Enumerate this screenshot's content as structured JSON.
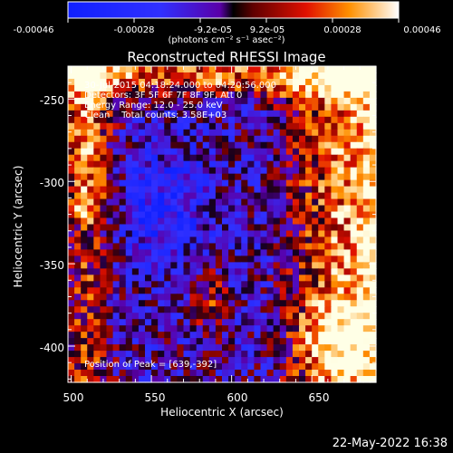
{
  "colorbar": {
    "ticks": [
      "-0.00046",
      "-0.00028",
      "-9.2e-05",
      "9.2e-05",
      "0.00028",
      "0.00046"
    ],
    "units": "(photons cm⁻² s⁻¹ asec⁻²)"
  },
  "annotations": [
    "30-Jul-2015 04:18:24.000 to 04:20:56.000",
    "Detectors: 3F 5F 6F 7F 8F 9F, Att 0",
    "Energy Range: 12.0 - 25.0 keV",
    "Clean    Total counts: 3.58E+03"
  ],
  "peak_label": "Position of Peak = [639,-392]",
  "datestamp": "22-May-2022 16:38",
  "chart_data": {
    "type": "heatmap",
    "title": "Reconstructed RHESSI Image",
    "xlabel": "Heliocentric X (arcsec)",
    "ylabel": "Heliocentric Y (arcsec)",
    "xlim": [
      498,
      690
    ],
    "ylim": [
      -422,
      -230
    ],
    "xticks": [
      500,
      550,
      600,
      650
    ],
    "yticks": [
      -250,
      -300,
      -350,
      -400
    ],
    "colorbar_range": [
      -0.00046,
      0.00046
    ],
    "peak_position": [
      639,
      -392
    ]
  }
}
